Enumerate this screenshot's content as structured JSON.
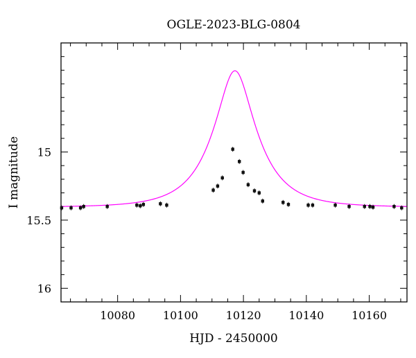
{
  "chart_data": {
    "type": "scatter",
    "title": "OGLE-2023-BLG-0804",
    "xlabel": "HJD - 2450000",
    "ylabel": "I magnitude",
    "xlim": [
      10062,
      10172
    ],
    "ylim": [
      16.1,
      14.2
    ],
    "y_inverted": true,
    "grid": false,
    "x_ticks_major": [
      10080,
      10100,
      10120,
      10140,
      10160
    ],
    "x_ticks_minor_step": 5,
    "y_ticks_major": [
      15,
      15.5,
      16
    ],
    "y_ticks_minor_step": 0.1,
    "tick_labels_x": [
      "10080",
      "10100",
      "10120",
      "10140",
      "10160"
    ],
    "tick_labels_y": [
      "15",
      "15.5",
      "16"
    ],
    "observations": {
      "name": "",
      "color": "#111111",
      "x": [
        10062.2,
        10065.2,
        10068.2,
        10069.2,
        10076.7,
        10086.1,
        10087.2,
        10088.2,
        10093.6,
        10095.6,
        10110.4,
        10111.8,
        10113.3,
        10116.6,
        10118.7,
        10119.9,
        10121.5,
        10123.5,
        10125.0,
        10126.1,
        10132.6,
        10134.3,
        10140.6,
        10142.0,
        10149.2,
        10153.6,
        10158.5,
        10160.2,
        10161.2,
        10167.9,
        10170.3
      ],
      "y": [
        15.41,
        15.41,
        15.41,
        15.4,
        15.4,
        15.39,
        15.395,
        15.385,
        15.38,
        15.39,
        15.28,
        15.25,
        15.19,
        14.98,
        15.07,
        15.15,
        15.24,
        15.285,
        15.3,
        15.36,
        15.37,
        15.385,
        15.39,
        15.39,
        15.39,
        15.4,
        15.4,
        15.4,
        15.405,
        15.4,
        15.41
      ]
    },
    "model": {
      "name": "",
      "color": "#ff00ff",
      "baseline_mag": 15.405,
      "t0": 10117.3,
      "tE": 13.5,
      "u0": 0.385,
      "blend_fraction": 0.87
    }
  }
}
